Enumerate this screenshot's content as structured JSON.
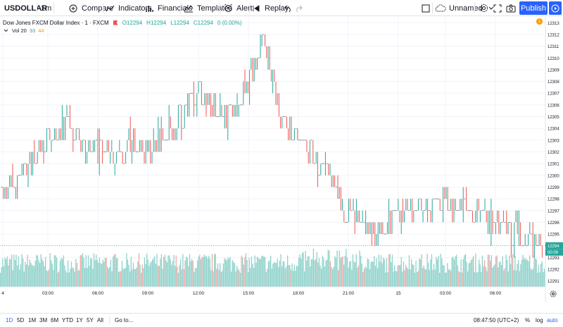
{
  "toolbar": {
    "symbol": "USDOLLAR",
    "interval": "1m",
    "compare": "Compare",
    "indicators": "Indicators",
    "financials": "Financials",
    "templates": "Templates",
    "alert": "Alert",
    "replay": "Replay",
    "layout_name": "Unnamed",
    "publish": "Publish"
  },
  "legend": {
    "title": "Dow Jones FXCM Dollar Index · 1 · FXCM",
    "o": "O12294",
    "h": "H12294",
    "l": "L12294",
    "c": "C12294",
    "change": "0 (0.00%)",
    "vol_label": "Vol 20",
    "vol_v1": "33",
    "vol_v2": "44",
    "alert_count": "1"
  },
  "price_axis": {
    "current_price": "12294",
    "countdown": "00:09"
  },
  "time_axis": {
    "labels": [
      "4",
      "03:00",
      "06:00",
      "09:00",
      "12:00",
      "15:00",
      "18:00",
      "21:00",
      "15",
      "03:00",
      "06:00"
    ]
  },
  "bottom": {
    "ranges": [
      "1D",
      "5D",
      "1M",
      "3M",
      "6M",
      "YTD",
      "1Y",
      "5Y",
      "All"
    ],
    "active_range": "1D",
    "goto": "Go to...",
    "clock": "08:47:50 (UTC+2)",
    "pct": "%",
    "log": "log",
    "auto": "auto"
  },
  "colors": {
    "up": "#26a69a",
    "down": "#ef5350",
    "accent": "#2962ff",
    "grid": "#f0f3fa",
    "volume_up": "#8fd3cb",
    "volume_down": "#f2a8a6"
  },
  "chart_data": {
    "type": "candlestick",
    "symbol": "Dow Jones FXCM Dollar Index",
    "interval": "1m",
    "ylim": [
      12290.5,
      12313.5
    ],
    "y_ticks": [
      12291,
      12292,
      12293,
      12294,
      12295,
      12296,
      12297,
      12298,
      12299,
      12300,
      12301,
      12302,
      12303,
      12304,
      12305,
      12306,
      12307,
      12308,
      12309,
      12310,
      12311,
      12312,
      12313
    ],
    "x_tick_labels": [
      "4",
      "03:00",
      "06:00",
      "09:00",
      "12:00",
      "15:00",
      "18:00",
      "21:00",
      "15",
      "03:00",
      "06:00"
    ],
    "last_price": 12294,
    "close_path": [
      {
        "x": "00:00",
        "y": 12298.5
      },
      {
        "x": "01:00",
        "y": 12299.5
      },
      {
        "x": "02:00",
        "y": 12301.5
      },
      {
        "x": "03:00",
        "y": 12303
      },
      {
        "x": "04:00",
        "y": 12304.5
      },
      {
        "x": "05:00",
        "y": 12302
      },
      {
        "x": "06:00",
        "y": 12302.5
      },
      {
        "x": "07:00",
        "y": 12301
      },
      {
        "x": "08:00",
        "y": 12303
      },
      {
        "x": "09:00",
        "y": 12302
      },
      {
        "x": "10:00",
        "y": 12303.5
      },
      {
        "x": "11:00",
        "y": 12305
      },
      {
        "x": "12:00",
        "y": 12307
      },
      {
        "x": "13:00",
        "y": 12306
      },
      {
        "x": "14:00",
        "y": 12305
      },
      {
        "x": "14:30",
        "y": 12308
      },
      {
        "x": "15:00",
        "y": 12311
      },
      {
        "x": "16:00",
        "y": 12305
      },
      {
        "x": "17:00",
        "y": 12303
      },
      {
        "x": "18:00",
        "y": 12301.5
      },
      {
        "x": "19:00",
        "y": 12299
      },
      {
        "x": "20:00",
        "y": 12297
      },
      {
        "x": "21:00",
        "y": 12295
      },
      {
        "x": "22:00",
        "y": 12295.5
      },
      {
        "x": "23:00",
        "y": 12296.5
      },
      {
        "x": "00:00",
        "y": 12297.5
      },
      {
        "x": "01:00",
        "y": 12297
      },
      {
        "x": "02:00",
        "y": 12298
      },
      {
        "x": "03:00",
        "y": 12297
      },
      {
        "x": "04:00",
        "y": 12296.5
      },
      {
        "x": "05:00",
        "y": 12296
      },
      {
        "x": "06:00",
        "y": 12295
      },
      {
        "x": "07:00",
        "y": 12294.5
      },
      {
        "x": "08:47",
        "y": 12294
      }
    ]
  }
}
